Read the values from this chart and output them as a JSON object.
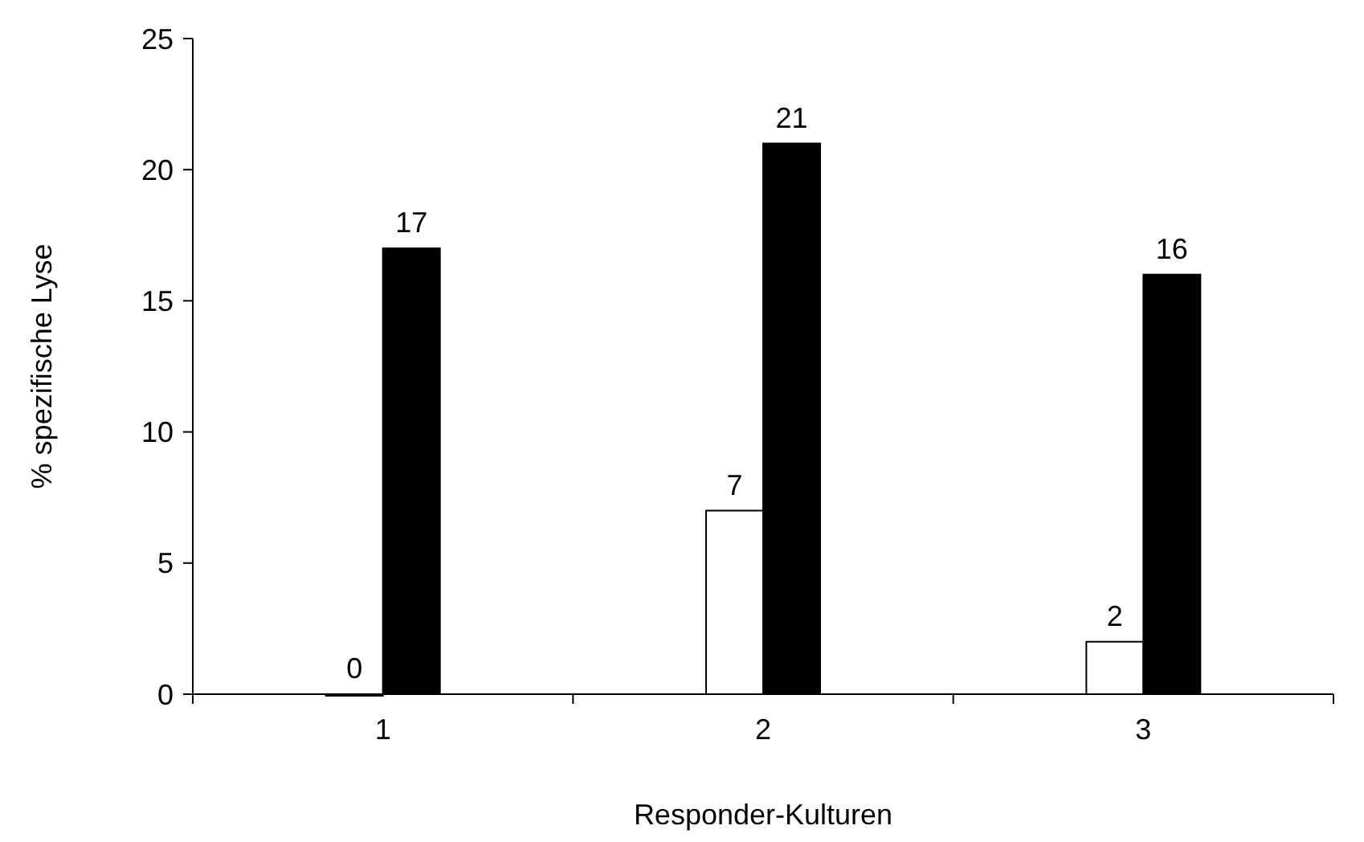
{
  "chart_data": {
    "type": "bar",
    "xlabel": "Responder-Kulturen",
    "ylabel": "% spezifische Lyse",
    "categories": [
      "1",
      "2",
      "3"
    ],
    "series": [
      {
        "color": "#ffffff",
        "values": [
          0,
          7,
          2
        ]
      },
      {
        "color": "#000000",
        "values": [
          17,
          21,
          16
        ]
      }
    ],
    "ylim": [
      0,
      25
    ],
    "yticks": [
      0,
      5,
      10,
      15,
      20,
      25
    ],
    "data_labels": true,
    "grid": false
  }
}
